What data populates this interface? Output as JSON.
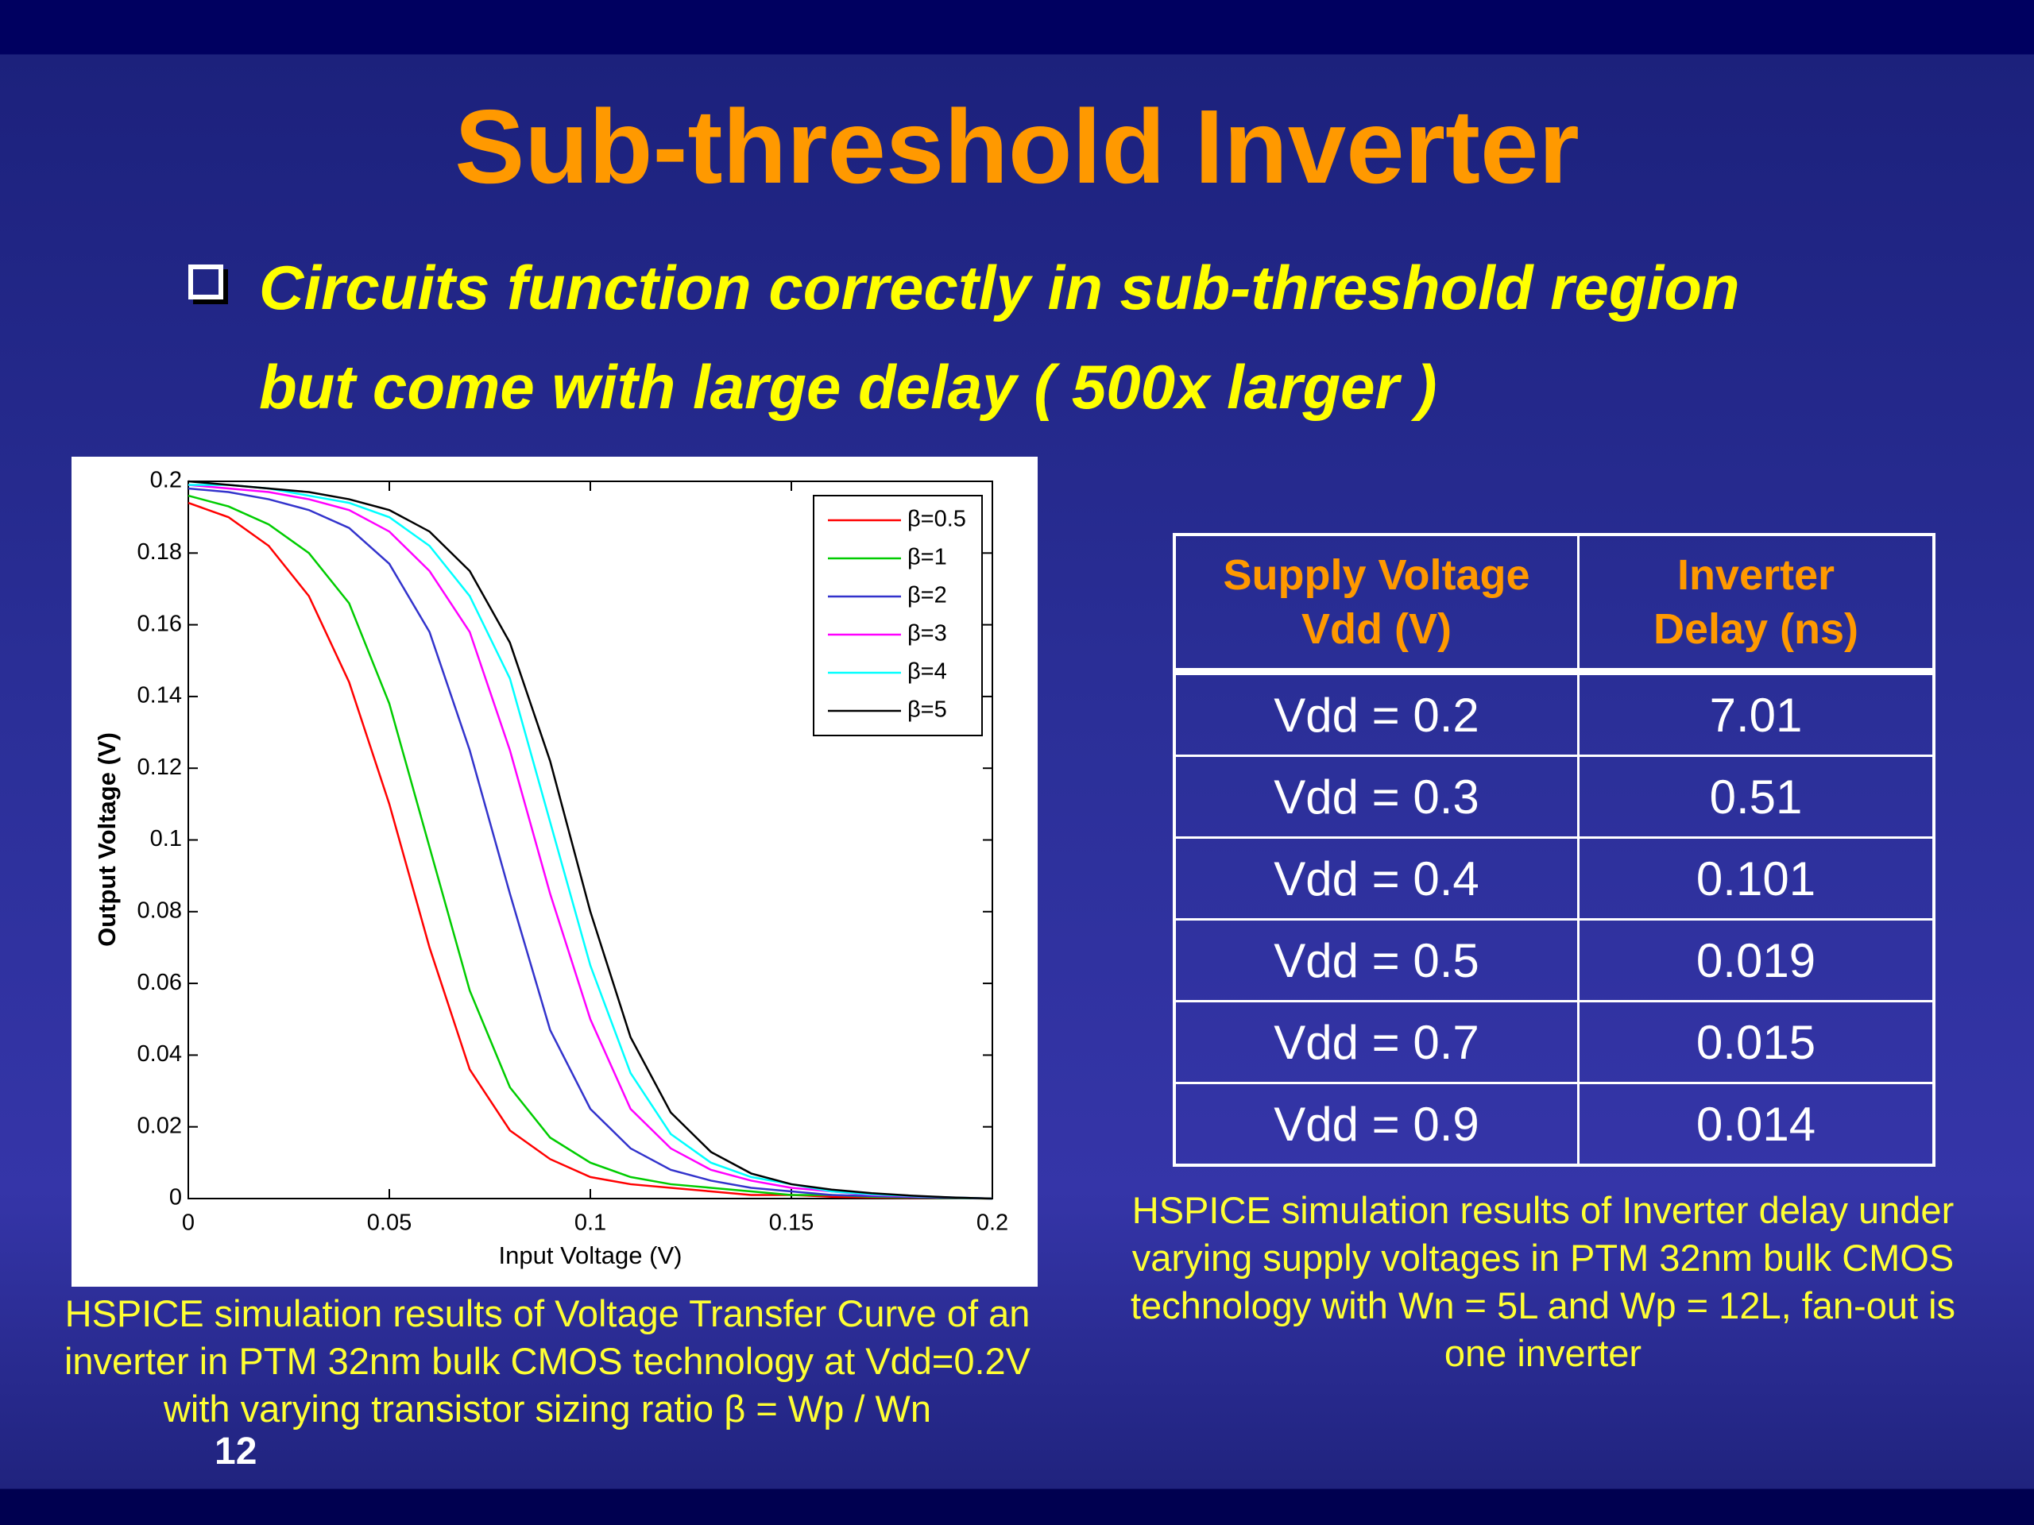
{
  "title": "Sub-threshold Inverter",
  "bullet": [
    "Circuits function correctly in sub-threshold region",
    "but come with large delay ( 500x larger )"
  ],
  "chart_data": {
    "type": "line",
    "xlabel": "Input Voltage (V)",
    "ylabel": "Output Voltage (V)",
    "x": [
      0,
      0.01,
      0.02,
      0.03,
      0.04,
      0.05,
      0.06,
      0.07,
      0.08,
      0.09,
      0.1,
      0.11,
      0.12,
      0.13,
      0.14,
      0.15,
      0.16,
      0.17,
      0.18,
      0.19,
      0.2
    ],
    "series": [
      {
        "name": "β=0.5",
        "color": "#ff0000",
        "values": [
          0.194,
          0.19,
          0.182,
          0.168,
          0.144,
          0.11,
          0.07,
          0.036,
          0.019,
          0.011,
          0.006,
          0.004,
          0.003,
          0.002,
          0.001,
          0.001,
          0.0005,
          0.0003,
          0.0002,
          0.0001,
          0
        ]
      },
      {
        "name": "β=1",
        "color": "#00cc00",
        "values": [
          0.196,
          0.193,
          0.188,
          0.18,
          0.166,
          0.138,
          0.098,
          0.058,
          0.031,
          0.017,
          0.01,
          0.006,
          0.004,
          0.003,
          0.002,
          0.001,
          0.001,
          0.0005,
          0.0003,
          0.0001,
          0
        ]
      },
      {
        "name": "β=2",
        "color": "#3333cc",
        "values": [
          0.198,
          0.197,
          0.195,
          0.192,
          0.187,
          0.177,
          0.158,
          0.125,
          0.085,
          0.047,
          0.025,
          0.014,
          0.008,
          0.005,
          0.003,
          0.002,
          0.001,
          0.0007,
          0.0004,
          0.0002,
          0
        ]
      },
      {
        "name": "β=3",
        "color": "#ff00ff",
        "values": [
          0.199,
          0.198,
          0.197,
          0.195,
          0.192,
          0.186,
          0.175,
          0.158,
          0.125,
          0.085,
          0.05,
          0.025,
          0.014,
          0.008,
          0.005,
          0.003,
          0.002,
          0.001,
          0.0006,
          0.0003,
          0
        ]
      },
      {
        "name": "β=4",
        "color": "#00ffff",
        "values": [
          0.199,
          0.199,
          0.198,
          0.196,
          0.194,
          0.19,
          0.182,
          0.168,
          0.145,
          0.105,
          0.065,
          0.035,
          0.018,
          0.01,
          0.006,
          0.004,
          0.002,
          0.0012,
          0.0007,
          0.0003,
          0
        ]
      },
      {
        "name": "β=5",
        "color": "#000000",
        "values": [
          0.2,
          0.199,
          0.198,
          0.197,
          0.195,
          0.192,
          0.186,
          0.175,
          0.155,
          0.122,
          0.08,
          0.045,
          0.024,
          0.013,
          0.007,
          0.004,
          0.0025,
          0.0015,
          0.0008,
          0.0003,
          0
        ]
      }
    ],
    "xlim": [
      0,
      0.2
    ],
    "xticks": [
      0,
      0.05,
      0.1,
      0.15,
      0.2
    ],
    "ylim": [
      0,
      0.2
    ],
    "yticks": [
      0,
      0.02,
      0.04,
      0.06,
      0.08,
      0.1,
      0.12,
      0.14,
      0.16,
      0.18,
      0.2
    ],
    "legend": "upper right",
    "grid": false
  },
  "chart_caption": [
    "HSPICE simulation results of Voltage Transfer Curve of an",
    "inverter in PTM 32nm bulk CMOS technology at Vdd=0.2V",
    "with varying transistor sizing ratio β = Wp / Wn"
  ],
  "table": {
    "header": [
      [
        "Supply Voltage",
        "Vdd (V)"
      ],
      [
        "Inverter",
        "Delay (ns)"
      ]
    ],
    "rows": [
      [
        "Vdd = 0.2",
        "7.01"
      ],
      [
        "Vdd = 0.3",
        "0.51"
      ],
      [
        "Vdd = 0.4",
        "0.101"
      ],
      [
        "Vdd = 0.5",
        "0.019"
      ],
      [
        "Vdd = 0.7",
        "0.015"
      ],
      [
        "Vdd = 0.9",
        "0.014"
      ]
    ],
    "caption": [
      "HSPICE simulation results of Inverter delay under",
      "varying supply voltages in PTM 32nm  bulk CMOS",
      "technology with Wn = 5L and Wp = 12L, fan-out is",
      "one inverter"
    ]
  },
  "page_number": "12"
}
